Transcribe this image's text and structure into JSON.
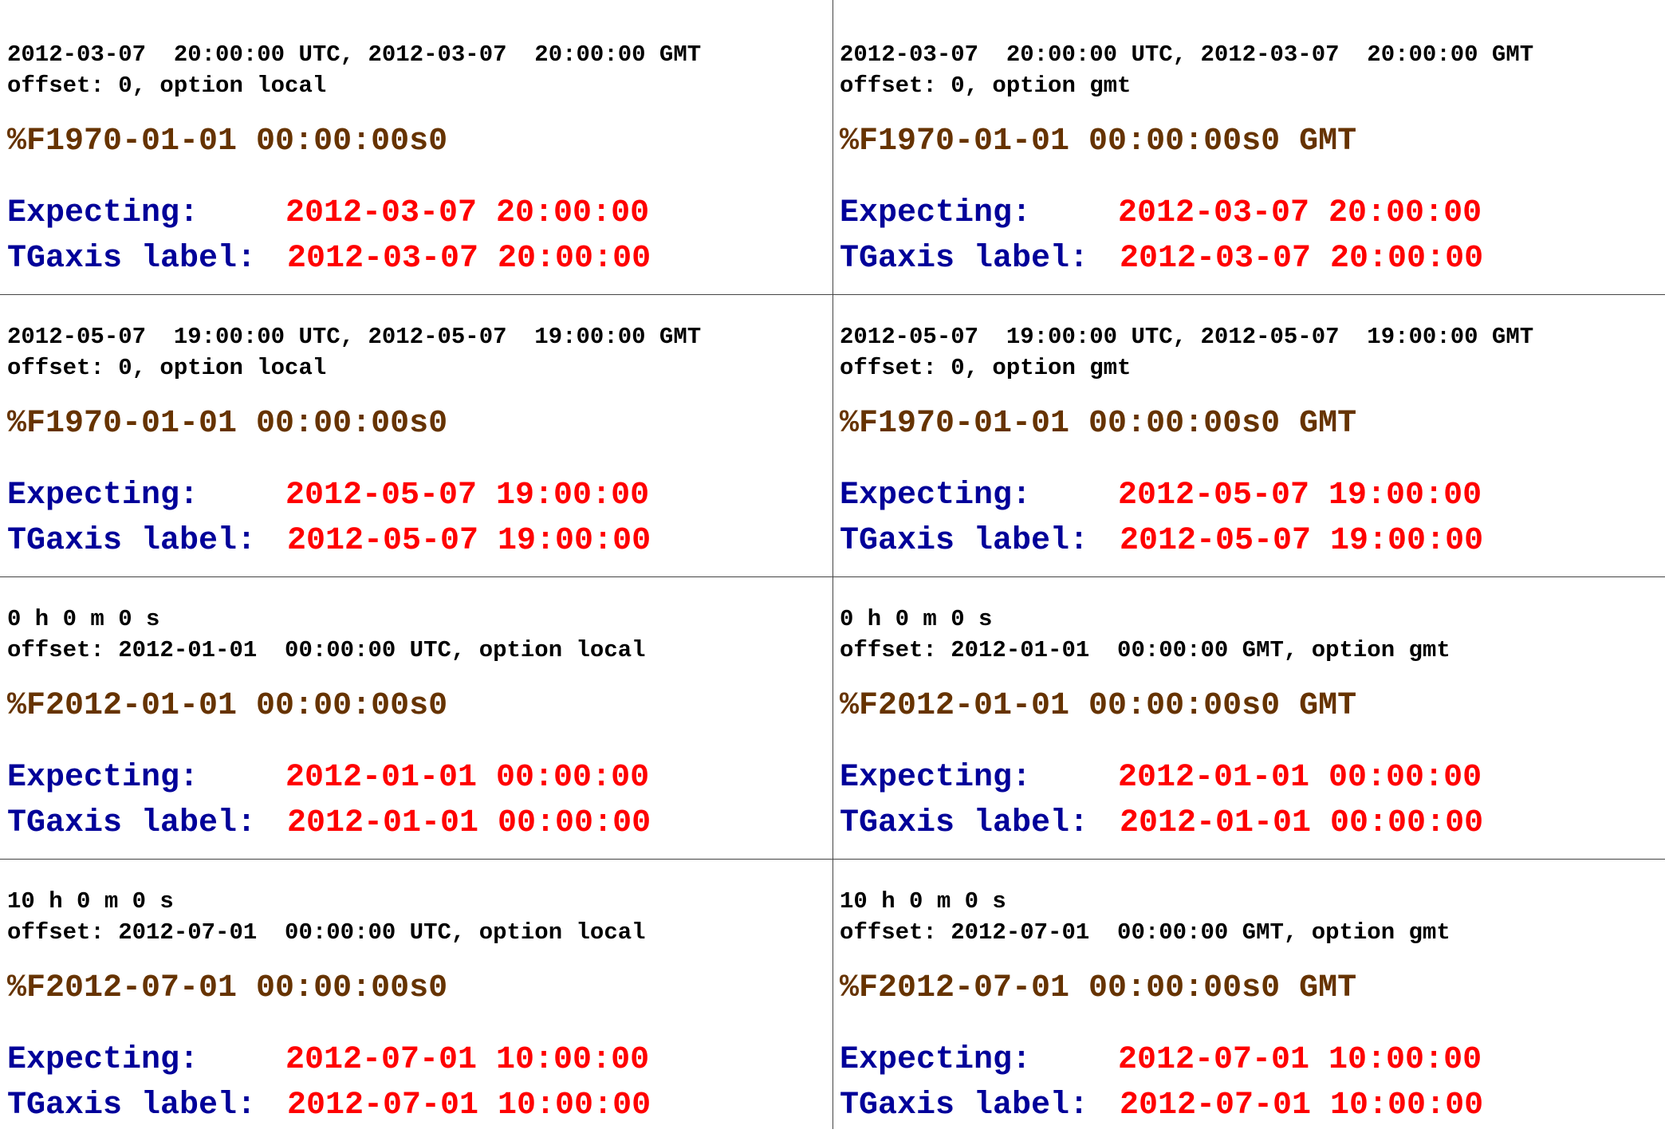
{
  "colors": {
    "format": "#663300",
    "label": "#000099",
    "value": "#ff0000",
    "text": "#000000",
    "grid": "#444444"
  },
  "cells": [
    {
      "line1": "2012-03-07  20:00:00 UTC, 2012-03-07  20:00:00 GMT",
      "line2": "offset: 0, option local",
      "format": "%F1970-01-01 00:00:00s0",
      "expecting_label": "Expecting:",
      "expecting_value": "2012-03-07 20:00:00",
      "tgaxis_label": "TGaxis label:",
      "tgaxis_value": "2012-03-07 20:00:00"
    },
    {
      "line1": "2012-03-07  20:00:00 UTC, 2012-03-07  20:00:00 GMT",
      "line2": "offset: 0, option gmt",
      "format": "%F1970-01-01 00:00:00s0 GMT",
      "expecting_label": "Expecting:",
      "expecting_value": "2012-03-07 20:00:00",
      "tgaxis_label": "TGaxis label:",
      "tgaxis_value": "2012-03-07 20:00:00"
    },
    {
      "line1": "2012-05-07  19:00:00 UTC, 2012-05-07  19:00:00 GMT",
      "line2": "offset: 0, option local",
      "format": "%F1970-01-01 00:00:00s0",
      "expecting_label": "Expecting:",
      "expecting_value": "2012-05-07 19:00:00",
      "tgaxis_label": "TGaxis label:",
      "tgaxis_value": "2012-05-07 19:00:00"
    },
    {
      "line1": "2012-05-07  19:00:00 UTC, 2012-05-07  19:00:00 GMT",
      "line2": "offset: 0, option gmt",
      "format": "%F1970-01-01 00:00:00s0 GMT",
      "expecting_label": "Expecting:",
      "expecting_value": "2012-05-07 19:00:00",
      "tgaxis_label": "TGaxis label:",
      "tgaxis_value": "2012-05-07 19:00:00"
    },
    {
      "line1": "0 h 0 m 0 s",
      "line2": "offset: 2012-01-01  00:00:00 UTC, option local",
      "format": "%F2012-01-01 00:00:00s0",
      "expecting_label": "Expecting:",
      "expecting_value": "2012-01-01 00:00:00",
      "tgaxis_label": "TGaxis label:",
      "tgaxis_value": "2012-01-01 00:00:00"
    },
    {
      "line1": "0 h 0 m 0 s",
      "line2": "offset: 2012-01-01  00:00:00 GMT, option gmt",
      "format": "%F2012-01-01 00:00:00s0 GMT",
      "expecting_label": "Expecting:",
      "expecting_value": "2012-01-01 00:00:00",
      "tgaxis_label": "TGaxis label:",
      "tgaxis_value": "2012-01-01 00:00:00"
    },
    {
      "line1": "10 h 0 m 0 s",
      "line2": "offset: 2012-07-01  00:00:00 UTC, option local",
      "format": "%F2012-07-01 00:00:00s0",
      "expecting_label": "Expecting:",
      "expecting_value": "2012-07-01 10:00:00",
      "tgaxis_label": "TGaxis label:",
      "tgaxis_value": "2012-07-01 10:00:00"
    },
    {
      "line1": "10 h 0 m 0 s",
      "line2": "offset: 2012-07-01  00:00:00 GMT, option gmt",
      "format": "%F2012-07-01 00:00:00s0 GMT",
      "expecting_label": "Expecting:",
      "expecting_value": "2012-07-01 10:00:00",
      "tgaxis_label": "TGaxis label:",
      "tgaxis_value": "2012-07-01 10:00:00"
    }
  ]
}
